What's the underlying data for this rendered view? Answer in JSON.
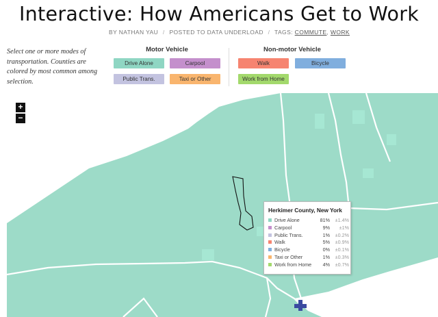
{
  "header": {
    "title": "Interactive: How Americans Get to Work",
    "byline": {
      "author": "BY NATHAN YAU",
      "posted": "POSTED TO DATA UNDERLOAD",
      "tags_label": "TAGS:",
      "tag1": "COMMUTE",
      "tag2": "WORK",
      "sep": "/"
    }
  },
  "instructions": "Select one or more modes of transportation. Counties are colored by most common among selection.",
  "groups": {
    "motor": "Motor Vehicle",
    "nonmotor": "Non-motor Vehicle"
  },
  "modes": {
    "drive_alone": {
      "label": "Drive Alone",
      "color": "#8fd6c3"
    },
    "carpool": {
      "label": "Carpool",
      "color": "#c48fcc"
    },
    "public_trans": {
      "label": "Public Trans.",
      "color": "#c3c3e0"
    },
    "taxi": {
      "label": "Taxi or Other",
      "color": "#f9b56e"
    },
    "walk": {
      "label": "Walk",
      "color": "#f68470"
    },
    "bicycle": {
      "label": "Bicycle",
      "color": "#80aede"
    },
    "work_home": {
      "label": "Work from Home",
      "color": "#a3d96c"
    }
  },
  "zoom": {
    "in": "+",
    "out": "−"
  },
  "map": {
    "fill": "#9ddbc8",
    "lake": "#ffffff",
    "border": "#ffffff",
    "highlight_border": "#111111",
    "marker_color": "#3a4aa0"
  },
  "tooltip": {
    "title": "Herkimer County, New York",
    "rows": [
      {
        "name": "Drive Alone",
        "pct": "81%",
        "moe": "±1.4%",
        "color": "#8fd6c3"
      },
      {
        "name": "Carpool",
        "pct": "9%",
        "moe": "±1%",
        "color": "#c48fcc"
      },
      {
        "name": "Public Trans.",
        "pct": "1%",
        "moe": "±0.2%",
        "color": "#c3c3e0"
      },
      {
        "name": "Walk",
        "pct": "5%",
        "moe": "±0.9%",
        "color": "#f68470"
      },
      {
        "name": "Bicycle",
        "pct": "0%",
        "moe": "±0.1%",
        "color": "#80aede"
      },
      {
        "name": "Taxi or Other",
        "pct": "1%",
        "moe": "±0.3%",
        "color": "#f9b56e"
      },
      {
        "name": "Work from Home",
        "pct": "4%",
        "moe": "±0.7%",
        "color": "#a3d96c"
      }
    ]
  }
}
